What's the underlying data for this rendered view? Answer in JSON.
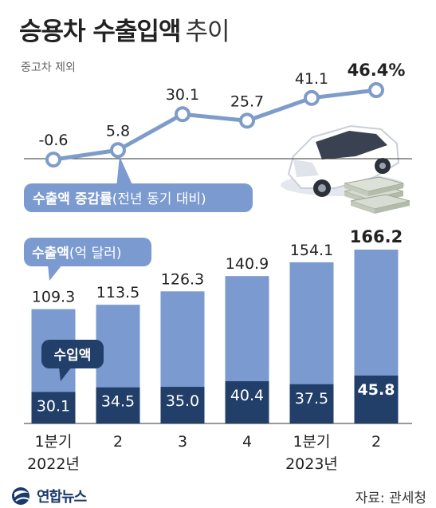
{
  "title": {
    "main": "승용차 수출입액",
    "sub": "추이"
  },
  "subtitle": "중고차 제외",
  "source": "자료: 관세청",
  "logo": {
    "text": "연합뉴스"
  },
  "colors": {
    "line": "#7e9cc9",
    "export_bar": "#7b9ad0",
    "import_bar": "#213f69",
    "label_pill": "#7b9ad0",
    "import_pill": "#213f69"
  },
  "chart_data": [
    {
      "type": "line",
      "title": "수출액 증감률(전년 동기 대비)",
      "categories": [
        "1분기",
        "2",
        "3",
        "4",
        "1분기",
        "2"
      ],
      "values": [
        -0.6,
        5.8,
        30.1,
        25.7,
        41.1,
        46.4
      ],
      "value_labels": [
        "-0.6",
        "5.8",
        "30.1",
        "25.7",
        "41.1",
        "46.4%"
      ],
      "unit": "%",
      "baseline": 0,
      "grid": false
    },
    {
      "type": "bar",
      "title": "승용차 수출입액",
      "unit": "억 달러",
      "categories": [
        "1분기",
        "2",
        "3",
        "4",
        "1분기",
        "2"
      ],
      "year_labels": [
        "2022년",
        "2023년"
      ],
      "series": [
        {
          "name": "수출액",
          "label_suffix": "(억 달러)",
          "values": [
            109.3,
            113.5,
            126.3,
            140.9,
            154.1,
            166.2
          ],
          "labels": [
            "109.3",
            "113.5",
            "126.3",
            "140.9",
            "154.1",
            "166.2"
          ]
        },
        {
          "name": "수입액",
          "values": [
            30.1,
            34.5,
            35.0,
            40.4,
            37.5,
            45.8
          ],
          "labels": [
            "30.1",
            "34.5",
            "35.0",
            "40.4",
            "37.5",
            "45.8"
          ]
        }
      ],
      "grid": false
    }
  ]
}
